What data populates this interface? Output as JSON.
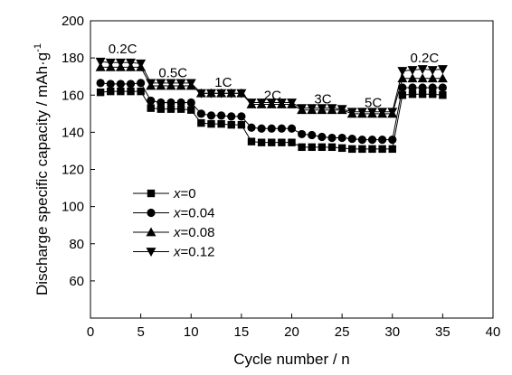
{
  "chart_data": {
    "type": "line",
    "xlabel": "Cycle number / n",
    "ylabel": "Discharge specific capacity / mAh·g",
    "ylabel_superscript": "-1",
    "xlim": [
      0,
      40
    ],
    "ylim": [
      40,
      200
    ],
    "xticks": [
      "0",
      "5",
      "10",
      "15",
      "20",
      "25",
      "30",
      "35",
      "40"
    ],
    "yticks": [
      "60",
      "80",
      "100",
      "120",
      "140",
      "160",
      "180",
      "200"
    ],
    "grid": false,
    "legend_position": "center-left",
    "legend": [
      {
        "var": "x",
        "suffix": "=0"
      },
      {
        "var": "x",
        "suffix": "=0.04"
      },
      {
        "var": "x",
        "suffix": "=0.08"
      },
      {
        "var": "x",
        "suffix": "=0.12"
      }
    ],
    "annotations": [
      {
        "text": "0.2C",
        "x": 3.2,
        "y": 185
      },
      {
        "text": "0.5C",
        "x": 8.2,
        "y": 172
      },
      {
        "text": "1C",
        "x": 13.2,
        "y": 167
      },
      {
        "text": "2C",
        "x": 18.1,
        "y": 160
      },
      {
        "text": "3C",
        "x": 23.1,
        "y": 158
      },
      {
        "text": "5C",
        "x": 28.1,
        "y": 156
      },
      {
        "text": "0.2C",
        "x": 33.2,
        "y": 180
      }
    ],
    "series": [
      {
        "name": "x=0",
        "marker": "square",
        "x": [
          1,
          2,
          3,
          4,
          5,
          6,
          7,
          8,
          9,
          10,
          11,
          12,
          13,
          14,
          15,
          16,
          17,
          18,
          19,
          20,
          21,
          22,
          23,
          24,
          25,
          26,
          27,
          28,
          29,
          30,
          31,
          32,
          33,
          34,
          35
        ],
        "values": [
          161.5,
          162,
          162,
          162,
          162,
          153,
          152.5,
          152.5,
          152.5,
          152,
          145,
          144.5,
          144.5,
          144,
          144,
          135,
          134.5,
          134.5,
          134.5,
          134.5,
          132,
          132,
          132,
          132,
          131.5,
          131,
          131,
          131,
          131,
          131,
          160,
          160.5,
          160.5,
          160.5,
          160
        ]
      },
      {
        "name": "x=0.04",
        "marker": "circle",
        "x": [
          1,
          2,
          3,
          4,
          5,
          6,
          7,
          8,
          9,
          10,
          11,
          12,
          13,
          14,
          15,
          16,
          17,
          18,
          19,
          20,
          21,
          22,
          23,
          24,
          25,
          26,
          27,
          28,
          29,
          30,
          31,
          32,
          33,
          34,
          35
        ],
        "values": [
          166.5,
          166,
          166,
          166,
          166.5,
          157,
          156,
          156,
          156,
          156,
          150,
          149,
          149,
          148.5,
          148.5,
          142.5,
          142,
          142,
          142,
          142,
          139,
          138.5,
          137.5,
          137,
          137,
          136.5,
          136,
          136,
          136,
          136,
          164,
          164,
          164,
          164,
          164
        ]
      },
      {
        "name": "x=0.08",
        "marker": "triangle-up",
        "x": [
          1,
          2,
          3,
          4,
          5,
          6,
          7,
          8,
          9,
          10,
          11,
          12,
          13,
          14,
          15,
          16,
          17,
          18,
          19,
          20,
          21,
          22,
          23,
          24,
          25,
          26,
          27,
          28,
          29,
          30,
          31,
          32,
          33,
          34,
          35
        ],
        "values": [
          175,
          175,
          175,
          175,
          175,
          165,
          165,
          165,
          165,
          165,
          161,
          161,
          161,
          161,
          161,
          155,
          155,
          155,
          155,
          155,
          152,
          152,
          152,
          152,
          152,
          150,
          150,
          150,
          150,
          150,
          169,
          169,
          169,
          169,
          169
        ]
      },
      {
        "name": "x=0.12",
        "marker": "triangle-down",
        "x": [
          1,
          2,
          3,
          4,
          5,
          6,
          7,
          8,
          9,
          10,
          11,
          12,
          13,
          14,
          15,
          16,
          17,
          18,
          19,
          20,
          21,
          22,
          23,
          24,
          25,
          26,
          27,
          28,
          29,
          30,
          31,
          32,
          33,
          34,
          35
        ],
        "values": [
          178,
          177.5,
          177.5,
          177.5,
          177,
          166.5,
          166.5,
          166.5,
          166.5,
          166.5,
          161,
          161,
          161,
          161,
          161,
          156,
          156,
          156,
          156,
          156,
          153,
          153,
          153,
          153,
          152.5,
          151,
          151,
          151,
          151,
          151,
          173,
          173.5,
          174,
          173.5,
          174
        ]
      }
    ]
  }
}
